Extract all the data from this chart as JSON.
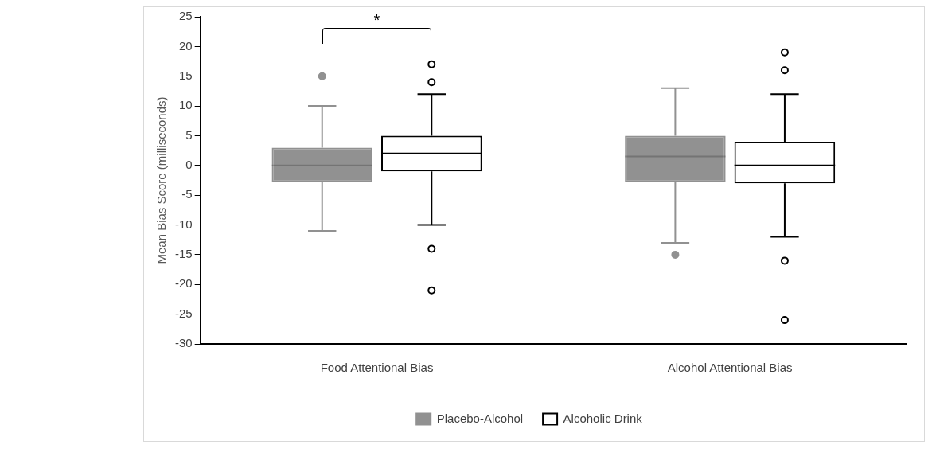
{
  "chart_data": {
    "type": "box",
    "ylabel": "Mean Bias Score (milliseconds)",
    "categories": [
      "Food Attentional Bias",
      "Alcohol Attentional Bias"
    ],
    "series": [
      {
        "name": "Placebo-Alcohol",
        "color": "#919191",
        "boxes": [
          {
            "low": -11,
            "q1": -2.8,
            "median": 0,
            "q3": 3,
            "high": 10,
            "outliers": [
              15
            ]
          },
          {
            "low": -13,
            "q1": -2.8,
            "median": 1.5,
            "q3": 5,
            "high": 13,
            "outliers": [
              -15
            ]
          }
        ]
      },
      {
        "name": "Alcoholic Drink",
        "color": "#000000",
        "boxes": [
          {
            "low": -10,
            "q1": -1,
            "median": 2,
            "q3": 5,
            "high": 12,
            "outliers": [
              17,
              14,
              -14,
              -21
            ]
          },
          {
            "low": -12,
            "q1": -3,
            "median": 0,
            "q3": 4,
            "high": 12,
            "outliers": [
              19,
              16,
              -16,
              -26
            ]
          }
        ]
      }
    ],
    "ylim": [
      -30,
      25
    ],
    "yticks": [
      -30,
      -25,
      -20,
      -15,
      -10,
      -5,
      0,
      5,
      10,
      15,
      20,
      25
    ],
    "grid": false,
    "legend": "bottom",
    "annotations": [
      "*"
    ]
  }
}
